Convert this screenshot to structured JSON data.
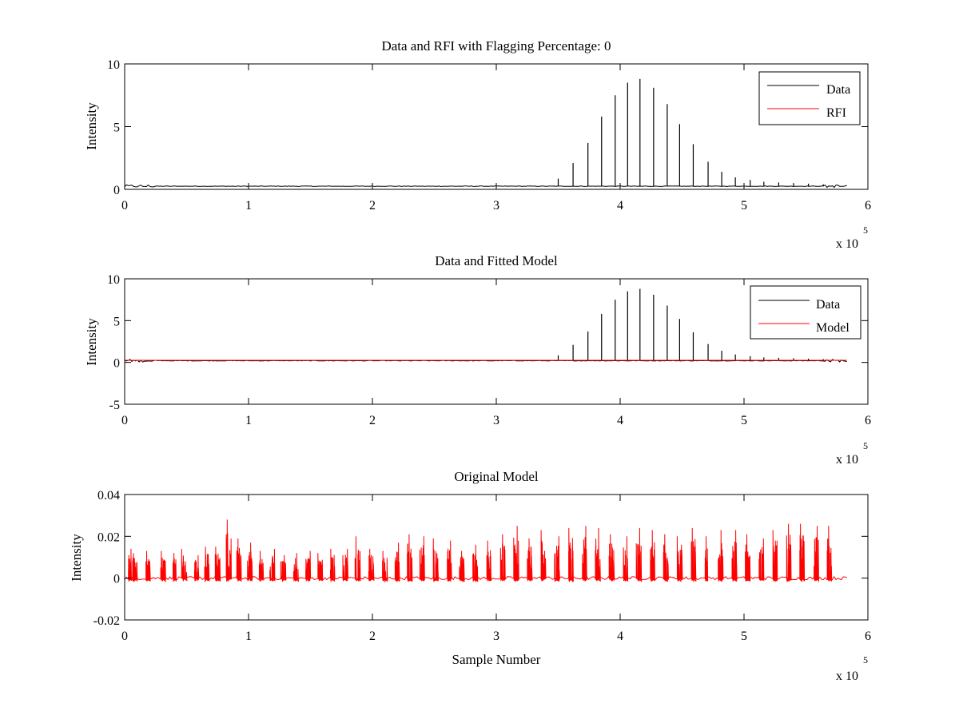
{
  "figure": {
    "background": "#ffffff",
    "colors": {
      "data": "#000000",
      "rfi": "#ff0000",
      "model": "#ff0000",
      "axes": "#000000"
    }
  },
  "chart_data": [
    {
      "type": "line",
      "title": "Data and RFI with Flagging Percentage: 0",
      "xlabel": "",
      "ylabel": "Intensity",
      "xlim": [
        0,
        600000
      ],
      "ylim": [
        0,
        10
      ],
      "x_ticks": [
        0,
        1,
        2,
        3,
        4,
        5,
        6
      ],
      "x_tick_labels": [
        "0",
        "1",
        "2",
        "3",
        "4",
        "5",
        "6"
      ],
      "x_exponent_label": "x 10",
      "x_exponent_power": "5",
      "y_ticks": [
        0,
        5,
        10
      ],
      "y_tick_labels": [
        "0",
        "5",
        "10"
      ],
      "grid": false,
      "legend_position": "top-right",
      "legend": [
        "Data",
        "RFI"
      ],
      "series": [
        {
          "name": "Data",
          "color": "#000000",
          "kind": "pulses",
          "baseline": 0.25,
          "x_range": [
            0,
            583000
          ],
          "pulse_x": [
            350000,
            362000,
            374000,
            385000,
            396000,
            406000,
            416000,
            427000,
            438000,
            448000,
            459000,
            471000,
            482000,
            493000,
            505000,
            516000,
            528000,
            540000,
            552000,
            564000
          ],
          "pulse_y": [
            0.85,
            2.1,
            3.7,
            5.8,
            7.5,
            8.5,
            8.8,
            8.1,
            6.8,
            5.2,
            3.6,
            2.2,
            1.4,
            0.95,
            0.75,
            0.6,
            0.55,
            0.5,
            0.45,
            0.4
          ]
        },
        {
          "name": "RFI",
          "color": "#ff0000",
          "kind": "none"
        }
      ]
    },
    {
      "type": "line",
      "title": "Data and Fitted Model",
      "xlabel": "",
      "ylabel": "Intensity",
      "xlim": [
        0,
        600000
      ],
      "ylim": [
        -5,
        10
      ],
      "x_ticks": [
        0,
        1,
        2,
        3,
        4,
        5,
        6
      ],
      "x_tick_labels": [
        "0",
        "1",
        "2",
        "3",
        "4",
        "5",
        "6"
      ],
      "x_exponent_label": "x 10",
      "x_exponent_power": "5",
      "y_ticks": [
        -5,
        0,
        5,
        10
      ],
      "y_tick_labels": [
        "-5",
        "0",
        "5",
        "10"
      ],
      "grid": false,
      "legend_position": "top-right",
      "legend": [
        "Data",
        "Model"
      ],
      "series": [
        {
          "name": "Data",
          "color": "#000000",
          "kind": "pulses",
          "baseline": 0.2,
          "x_range": [
            0,
            583000
          ],
          "pulse_x": [
            350000,
            362000,
            374000,
            385000,
            396000,
            406000,
            416000,
            427000,
            438000,
            448000,
            459000,
            471000,
            482000,
            493000,
            505000,
            516000,
            528000,
            540000,
            552000,
            564000
          ],
          "pulse_y": [
            0.85,
            2.1,
            3.7,
            5.8,
            7.5,
            8.5,
            8.8,
            8.1,
            6.8,
            5.2,
            3.6,
            2.2,
            1.4,
            0.95,
            0.75,
            0.6,
            0.55,
            0.5,
            0.45,
            0.4
          ]
        },
        {
          "name": "Model",
          "color": "#ff0000",
          "kind": "baseline",
          "baseline": 0.25,
          "x_range": [
            0,
            583000
          ]
        }
      ]
    },
    {
      "type": "line",
      "title": "Original Model",
      "xlabel": "Sample Number",
      "ylabel": "Intensity",
      "xlim": [
        0,
        600000
      ],
      "ylim": [
        -0.02,
        0.04
      ],
      "x_ticks": [
        0,
        1,
        2,
        3,
        4,
        5,
        6
      ],
      "x_tick_labels": [
        "0",
        "1",
        "2",
        "3",
        "4",
        "5",
        "6"
      ],
      "x_exponent_label": "x 10",
      "x_exponent_power": "5",
      "y_ticks": [
        -0.02,
        0,
        0.02,
        0.04
      ],
      "y_tick_labels": [
        "-0.02",
        "0",
        "0.02",
        "0.04"
      ],
      "grid": false,
      "legend_position": "none",
      "legend": [],
      "series": [
        {
          "name": "",
          "color": "#ff0000",
          "kind": "pulses",
          "baseline": 0.0,
          "x_range": [
            0,
            583000
          ],
          "pulse_x": [
            5000,
            8000,
            19000,
            31000,
            40000,
            48000,
            58000,
            66000,
            75000,
            84000,
            92000,
            101000,
            110000,
            119000,
            128000,
            138000,
            148000,
            158000,
            168000,
            178000,
            188000,
            199000,
            210000,
            220000,
            230000,
            240000,
            251000,
            262000,
            272000,
            283000,
            294000,
            305000,
            316000,
            327000,
            338000,
            349000,
            360000,
            371000,
            382000,
            393000,
            404000,
            415000,
            426000,
            437000,
            448000,
            459000,
            470000,
            481000,
            492000,
            503000,
            514000,
            525000,
            536000,
            547000,
            558000,
            569000
          ],
          "pulse_y": [
            0.014,
            0.012,
            0.013,
            0.013,
            0.012,
            0.014,
            0.011,
            0.015,
            0.015,
            0.028,
            0.019,
            0.017,
            0.013,
            0.014,
            0.011,
            0.012,
            0.013,
            0.012,
            0.014,
            0.014,
            0.02,
            0.014,
            0.013,
            0.017,
            0.021,
            0.02,
            0.019,
            0.018,
            0.013,
            0.016,
            0.018,
            0.021,
            0.025,
            0.019,
            0.023,
            0.02,
            0.024,
            0.025,
            0.024,
            0.021,
            0.02,
            0.024,
            0.023,
            0.021,
            0.02,
            0.024,
            0.02,
            0.023,
            0.023,
            0.021,
            0.019,
            0.023,
            0.026,
            0.026,
            0.025,
            0.025
          ],
          "noise_amplitude": 0.0015
        }
      ]
    }
  ]
}
